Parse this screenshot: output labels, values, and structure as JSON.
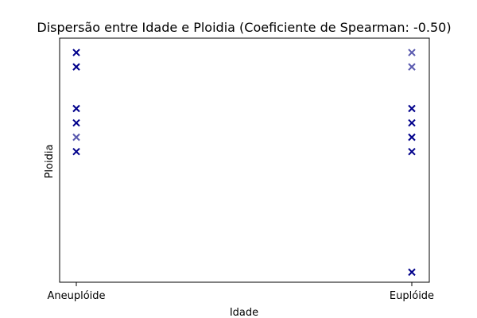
{
  "chart_data": {
    "type": "scatter",
    "title": "Dispersão entre Idade e Ploidia (Coeficiente de Spearman: -0.50)",
    "xlabel": "Idade",
    "ylabel": "Ploidia",
    "categories": [
      "Aneuplóide",
      "Euplóide"
    ],
    "ylim": [
      0,
      17
    ],
    "ticks_y_visible": false,
    "grid": false,
    "legend": "none",
    "marker": "x",
    "colors": {
      "dark": "#00008b",
      "light": "#5a5aaf"
    },
    "points": [
      {
        "x": "Aneuplóide",
        "y": 16.0,
        "shade": "dark"
      },
      {
        "x": "Aneuplóide",
        "y": 15.0,
        "shade": "dark"
      },
      {
        "x": "Aneuplóide",
        "y": 12.1,
        "shade": "dark"
      },
      {
        "x": "Aneuplóide",
        "y": 11.1,
        "shade": "dark"
      },
      {
        "x": "Aneuplóide",
        "y": 10.1,
        "shade": "light"
      },
      {
        "x": "Aneuplóide",
        "y": 9.1,
        "shade": "dark"
      },
      {
        "x": "Euplóide",
        "y": 16.0,
        "shade": "light"
      },
      {
        "x": "Euplóide",
        "y": 15.0,
        "shade": "light"
      },
      {
        "x": "Euplóide",
        "y": 12.1,
        "shade": "dark"
      },
      {
        "x": "Euplóide",
        "y": 11.1,
        "shade": "dark"
      },
      {
        "x": "Euplóide",
        "y": 10.1,
        "shade": "dark"
      },
      {
        "x": "Euplóide",
        "y": 9.1,
        "shade": "dark"
      },
      {
        "x": "Euplóide",
        "y": 0.7,
        "shade": "dark"
      }
    ]
  }
}
